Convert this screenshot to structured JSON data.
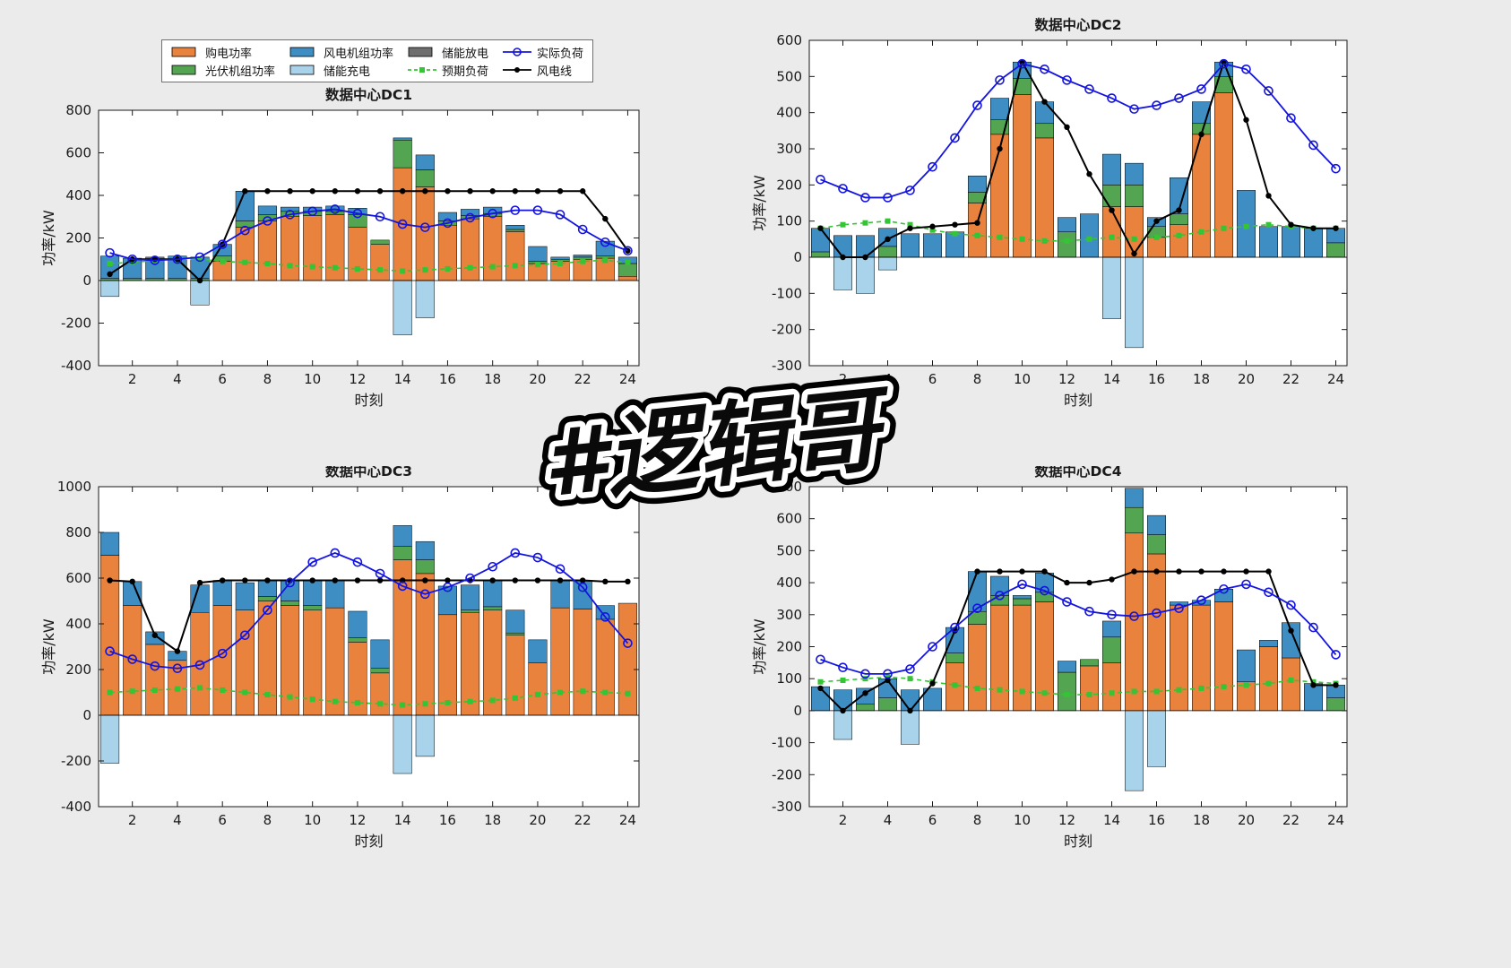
{
  "watermark": {
    "text": "#逻辑哥"
  },
  "colors": {
    "purchase": "#E8823C",
    "pv": "#54A551",
    "wind": "#3E8EC4",
    "charge": "#A9D3EA",
    "discharge": "#6E6E6E",
    "actual_line": "#1414E0",
    "expected_line": "#35C435",
    "wind_line": "#000000",
    "figure_bg": "#EBEBEB",
    "plot_bg": "#FFFFFF"
  },
  "legend": {
    "items": [
      {
        "label": "购电功率",
        "type": "patch",
        "role": "purchase",
        "colorKey": "purchase"
      },
      {
        "label": "光伏机组功率",
        "type": "patch",
        "role": "pv",
        "colorKey": "pv"
      },
      {
        "label": "风电机组功率",
        "type": "patch",
        "role": "wind",
        "colorKey": "wind"
      },
      {
        "label": "储能充电",
        "type": "patch",
        "role": "charge",
        "colorKey": "charge"
      },
      {
        "label": "储能放电",
        "type": "patch",
        "role": "discharge",
        "colorKey": "discharge"
      },
      {
        "label": "预期负荷",
        "type": "line-square",
        "role": "expected",
        "colorKey": "expected_line"
      },
      {
        "label": "实际负荷",
        "type": "line-circle",
        "role": "actual",
        "colorKey": "actual_line"
      },
      {
        "label": "风电线",
        "type": "line-dot",
        "role": "wind_line",
        "colorKey": "wind_line"
      }
    ]
  },
  "chart_data": [
    {
      "type": "bar",
      "title": "数据中心DC1",
      "xlabel": "时刻",
      "ylabel": "功率/kW",
      "xlim": [
        0.5,
        24.5
      ],
      "xticks": [
        2,
        4,
        6,
        8,
        10,
        12,
        14,
        16,
        18,
        20,
        22,
        24
      ],
      "ylim": [
        -400,
        800
      ],
      "ytick_step": 200,
      "series": [
        {
          "name": "购电功率",
          "role": "purchase",
          "values": [
            0,
            0,
            0,
            0,
            0,
            90,
            250,
            280,
            300,
            305,
            310,
            250,
            170,
            530,
            440,
            260,
            290,
            300,
            230,
            80,
            90,
            100,
            105,
            20
          ]
        },
        {
          "name": "光伏机组功率",
          "role": "pv",
          "values": [
            10,
            10,
            10,
            10,
            10,
            25,
            30,
            30,
            25,
            20,
            15,
            60,
            20,
            130,
            80,
            20,
            15,
            15,
            10,
            10,
            10,
            10,
            10,
            60
          ]
        },
        {
          "name": "风电机组功率",
          "role": "wind",
          "values": [
            105,
            95,
            100,
            105,
            100,
            55,
            140,
            40,
            20,
            20,
            25,
            30,
            0,
            10,
            70,
            40,
            30,
            30,
            20,
            70,
            10,
            10,
            70,
            30
          ]
        },
        {
          "name": "储能充电",
          "role": "charge",
          "values": [
            -75,
            0,
            0,
            0,
            -115,
            0,
            0,
            0,
            0,
            0,
            0,
            0,
            0,
            -255,
            -175,
            0,
            0,
            0,
            0,
            0,
            0,
            0,
            0,
            0
          ]
        },
        {
          "name": "储能放电",
          "role": "discharge",
          "values": [
            0,
            0,
            0,
            0,
            0,
            0,
            0,
            0,
            0,
            0,
            0,
            0,
            0,
            0,
            0,
            0,
            0,
            0,
            0,
            0,
            0,
            0,
            0,
            0
          ]
        }
      ],
      "lines": [
        {
          "name": "实际负荷",
          "role": "actual",
          "values": [
            130,
            100,
            95,
            100,
            110,
            170,
            235,
            280,
            310,
            325,
            335,
            315,
            300,
            265,
            250,
            270,
            295,
            315,
            330,
            330,
            310,
            240,
            180,
            140
          ]
        },
        {
          "name": "预期负荷",
          "role": "expected",
          "values": [
            80,
            85,
            95,
            100,
            100,
            90,
            85,
            80,
            70,
            65,
            60,
            55,
            50,
            45,
            50,
            55,
            60,
            65,
            70,
            75,
            80,
            90,
            95,
            85
          ]
        },
        {
          "name": "风电线",
          "role": "wind_line",
          "values": [
            30,
            100,
            100,
            100,
            0,
            170,
            420,
            420,
            420,
            420,
            420,
            420,
            420,
            420,
            420,
            420,
            420,
            420,
            420,
            420,
            420,
            420,
            290,
            140
          ]
        }
      ]
    },
    {
      "type": "bar",
      "title": "数据中心DC2",
      "xlabel": "时刻",
      "ylabel": "功率/kW",
      "xlim": [
        0.5,
        24.5
      ],
      "xticks": [
        2,
        4,
        6,
        8,
        10,
        12,
        14,
        16,
        18,
        20,
        22,
        24
      ],
      "ylim": [
        -300,
        600
      ],
      "ytick_step": 100,
      "series": [
        {
          "name": "购电功率",
          "role": "purchase",
          "values": [
            0,
            0,
            0,
            0,
            0,
            0,
            0,
            150,
            340,
            450,
            330,
            0,
            0,
            140,
            140,
            55,
            90,
            340,
            455,
            0,
            0,
            0,
            0,
            0
          ]
        },
        {
          "name": "光伏机组功率",
          "role": "pv",
          "values": [
            15,
            0,
            0,
            30,
            0,
            0,
            0,
            30,
            40,
            45,
            40,
            70,
            0,
            60,
            60,
            30,
            30,
            30,
            45,
            0,
            0,
            0,
            0,
            40
          ]
        },
        {
          "name": "风电机组功率",
          "role": "wind",
          "values": [
            65,
            60,
            60,
            50,
            65,
            65,
            70,
            45,
            60,
            45,
            60,
            40,
            120,
            85,
            60,
            25,
            100,
            60,
            40,
            185,
            85,
            85,
            80,
            40
          ]
        },
        {
          "name": "储能充电",
          "role": "charge",
          "values": [
            0,
            -90,
            -100,
            -35,
            0,
            0,
            0,
            0,
            0,
            0,
            0,
            0,
            0,
            -170,
            -250,
            0,
            0,
            0,
            0,
            0,
            0,
            0,
            0,
            0
          ]
        },
        {
          "name": "储能放电",
          "role": "discharge",
          "values": [
            0,
            0,
            0,
            0,
            0,
            0,
            0,
            0,
            0,
            0,
            0,
            0,
            0,
            0,
            0,
            0,
            0,
            0,
            0,
            0,
            0,
            0,
            0,
            0
          ]
        }
      ],
      "lines": [
        {
          "name": "实际负荷",
          "role": "actual",
          "values": [
            215,
            190,
            165,
            165,
            185,
            250,
            330,
            420,
            490,
            535,
            520,
            490,
            465,
            440,
            410,
            420,
            440,
            465,
            535,
            520,
            460,
            385,
            310,
            245
          ]
        },
        {
          "name": "预期负荷",
          "role": "expected",
          "values": [
            80,
            90,
            95,
            100,
            90,
            75,
            65,
            60,
            55,
            50,
            45,
            45,
            50,
            55,
            50,
            55,
            60,
            70,
            80,
            85,
            90,
            85,
            80,
            80
          ]
        },
        {
          "name": "风电线",
          "role": "wind_line",
          "values": [
            80,
            0,
            0,
            50,
            80,
            85,
            90,
            95,
            300,
            540,
            430,
            360,
            230,
            130,
            10,
            100,
            130,
            340,
            540,
            380,
            170,
            90,
            80,
            80
          ]
        }
      ]
    },
    {
      "type": "bar",
      "title": "数据中心DC3",
      "xlabel": "时刻",
      "ylabel": "功率/kW",
      "xlim": [
        0.5,
        24.5
      ],
      "xticks": [
        2,
        4,
        6,
        8,
        10,
        12,
        14,
        16,
        18,
        20,
        22,
        24
      ],
      "ylim": [
        -400,
        1000
      ],
      "ytick_step": 200,
      "series": [
        {
          "name": "购电功率",
          "role": "purchase",
          "values": [
            700,
            480,
            310,
            240,
            450,
            480,
            460,
            500,
            480,
            460,
            470,
            320,
            185,
            680,
            620,
            440,
            450,
            460,
            350,
            230,
            470,
            465,
            420,
            490
          ]
        },
        {
          "name": "光伏机组功率",
          "role": "pv",
          "values": [
            0,
            0,
            0,
            0,
            0,
            0,
            0,
            20,
            20,
            20,
            0,
            20,
            20,
            60,
            60,
            0,
            10,
            15,
            10,
            0,
            0,
            0,
            0,
            0
          ]
        },
        {
          "name": "风电机组功率",
          "role": "wind",
          "values": [
            100,
            105,
            55,
            40,
            120,
            110,
            120,
            70,
            90,
            110,
            120,
            115,
            125,
            90,
            80,
            125,
            110,
            115,
            100,
            100,
            120,
            125,
            60,
            0
          ]
        },
        {
          "name": "储能充电",
          "role": "charge",
          "values": [
            -210,
            0,
            0,
            0,
            0,
            0,
            0,
            0,
            0,
            0,
            0,
            0,
            0,
            -255,
            -180,
            0,
            0,
            0,
            0,
            0,
            0,
            0,
            0,
            0
          ]
        },
        {
          "name": "储能放电",
          "role": "discharge",
          "values": [
            0,
            0,
            0,
            0,
            0,
            0,
            0,
            0,
            0,
            0,
            0,
            0,
            0,
            0,
            0,
            0,
            0,
            0,
            0,
            0,
            0,
            0,
            0,
            0
          ]
        }
      ],
      "lines": [
        {
          "name": "实际负荷",
          "role": "actual",
          "values": [
            280,
            245,
            215,
            205,
            220,
            270,
            350,
            460,
            580,
            670,
            710,
            670,
            620,
            565,
            530,
            560,
            600,
            650,
            710,
            690,
            640,
            560,
            430,
            315
          ]
        },
        {
          "name": "预期负荷",
          "role": "expected",
          "values": [
            100,
            105,
            110,
            115,
            120,
            110,
            100,
            90,
            80,
            70,
            60,
            55,
            50,
            45,
            50,
            55,
            60,
            65,
            75,
            90,
            100,
            105,
            100,
            95
          ]
        },
        {
          "name": "风电线",
          "role": "wind_line",
          "values": [
            590,
            585,
            350,
            280,
            580,
            590,
            590,
            590,
            590,
            590,
            590,
            590,
            590,
            590,
            590,
            590,
            590,
            590,
            590,
            590,
            590,
            590,
            585,
            585
          ]
        }
      ]
    },
    {
      "type": "bar",
      "title": "数据中心DC4",
      "xlabel": "时刻",
      "ylabel": "功率/kW",
      "xlim": [
        0.5,
        24.5
      ],
      "xticks": [
        2,
        4,
        6,
        8,
        10,
        12,
        14,
        16,
        18,
        20,
        22,
        24
      ],
      "ylim": [
        -300,
        700
      ],
      "ytick_step": 100,
      "series": [
        {
          "name": "购电功率",
          "role": "purchase",
          "values": [
            0,
            0,
            0,
            0,
            0,
            0,
            150,
            270,
            330,
            330,
            340,
            0,
            140,
            150,
            555,
            490,
            330,
            330,
            340,
            90,
            200,
            165,
            0,
            0
          ]
        },
        {
          "name": "光伏机组功率",
          "role": "pv",
          "values": [
            0,
            0,
            20,
            40,
            0,
            0,
            30,
            40,
            30,
            20,
            30,
            120,
            20,
            80,
            80,
            60,
            0,
            0,
            0,
            0,
            0,
            0,
            0,
            40
          ]
        },
        {
          "name": "风电机组功率",
          "role": "wind",
          "values": [
            75,
            65,
            50,
            60,
            65,
            70,
            80,
            125,
            60,
            10,
            60,
            35,
            0,
            50,
            60,
            60,
            10,
            15,
            40,
            100,
            20,
            110,
            85,
            40
          ]
        },
        {
          "name": "储能充电",
          "role": "charge",
          "values": [
            0,
            -90,
            0,
            0,
            -105,
            0,
            0,
            0,
            0,
            0,
            0,
            0,
            0,
            0,
            -250,
            -175,
            0,
            0,
            0,
            0,
            0,
            0,
            0,
            0
          ]
        },
        {
          "name": "储能放电",
          "role": "discharge",
          "values": [
            0,
            0,
            0,
            0,
            0,
            0,
            0,
            0,
            0,
            0,
            0,
            0,
            0,
            0,
            0,
            0,
            0,
            0,
            0,
            0,
            0,
            0,
            0,
            0
          ]
        }
      ],
      "lines": [
        {
          "name": "实际负荷",
          "role": "actual",
          "values": [
            160,
            135,
            115,
            115,
            130,
            200,
            260,
            320,
            360,
            395,
            375,
            340,
            310,
            300,
            295,
            305,
            320,
            345,
            380,
            395,
            370,
            330,
            260,
            175
          ]
        },
        {
          "name": "预期负荷",
          "role": "expected",
          "values": [
            90,
            95,
            100,
            105,
            100,
            90,
            80,
            70,
            65,
            60,
            55,
            50,
            50,
            55,
            60,
            60,
            65,
            70,
            75,
            80,
            85,
            95,
            90,
            85
          ]
        },
        {
          "name": "风电线",
          "role": "wind_line",
          "values": [
            70,
            0,
            55,
            95,
            0,
            85,
            250,
            435,
            435,
            435,
            435,
            400,
            400,
            410,
            435,
            435,
            435,
            435,
            435,
            435,
            435,
            250,
            80,
            80
          ]
        }
      ]
    }
  ]
}
